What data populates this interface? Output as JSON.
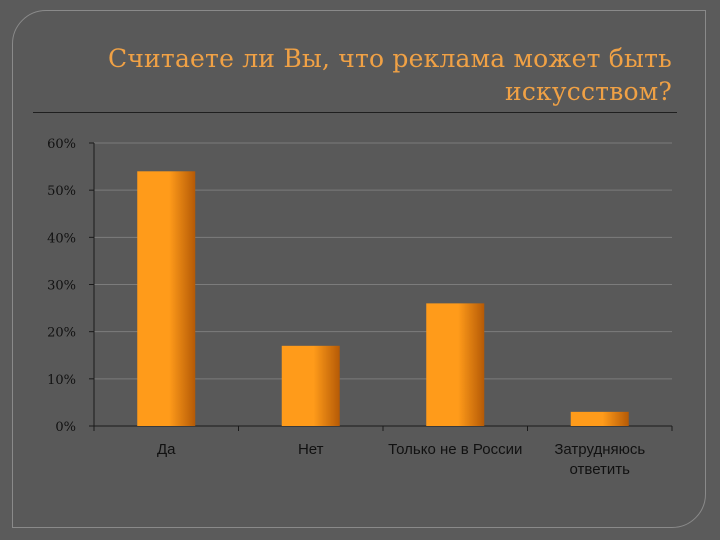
{
  "slide": {
    "title_line1": "Считаете ли Вы, что реклама может быть",
    "title_line2": "искусством?"
  },
  "colors": {
    "background": "#5b5b5b",
    "title_text": "#f0a145",
    "bar_light": "#ff9b1a",
    "bar_dark": "#b55a06",
    "gridline": "#7c7c7c"
  },
  "chart_data": {
    "type": "bar",
    "categories": [
      "Да",
      "Нет",
      "Только не в России",
      [
        "Затрудняюсь",
        "ответить"
      ]
    ],
    "values": [
      54,
      17,
      26,
      3
    ],
    "ylim": [
      0,
      60
    ],
    "yticks": [
      "0%",
      "10%",
      "20%",
      "30%",
      "40%",
      "50%",
      "60%"
    ],
    "grid": true,
    "legend": "none"
  }
}
